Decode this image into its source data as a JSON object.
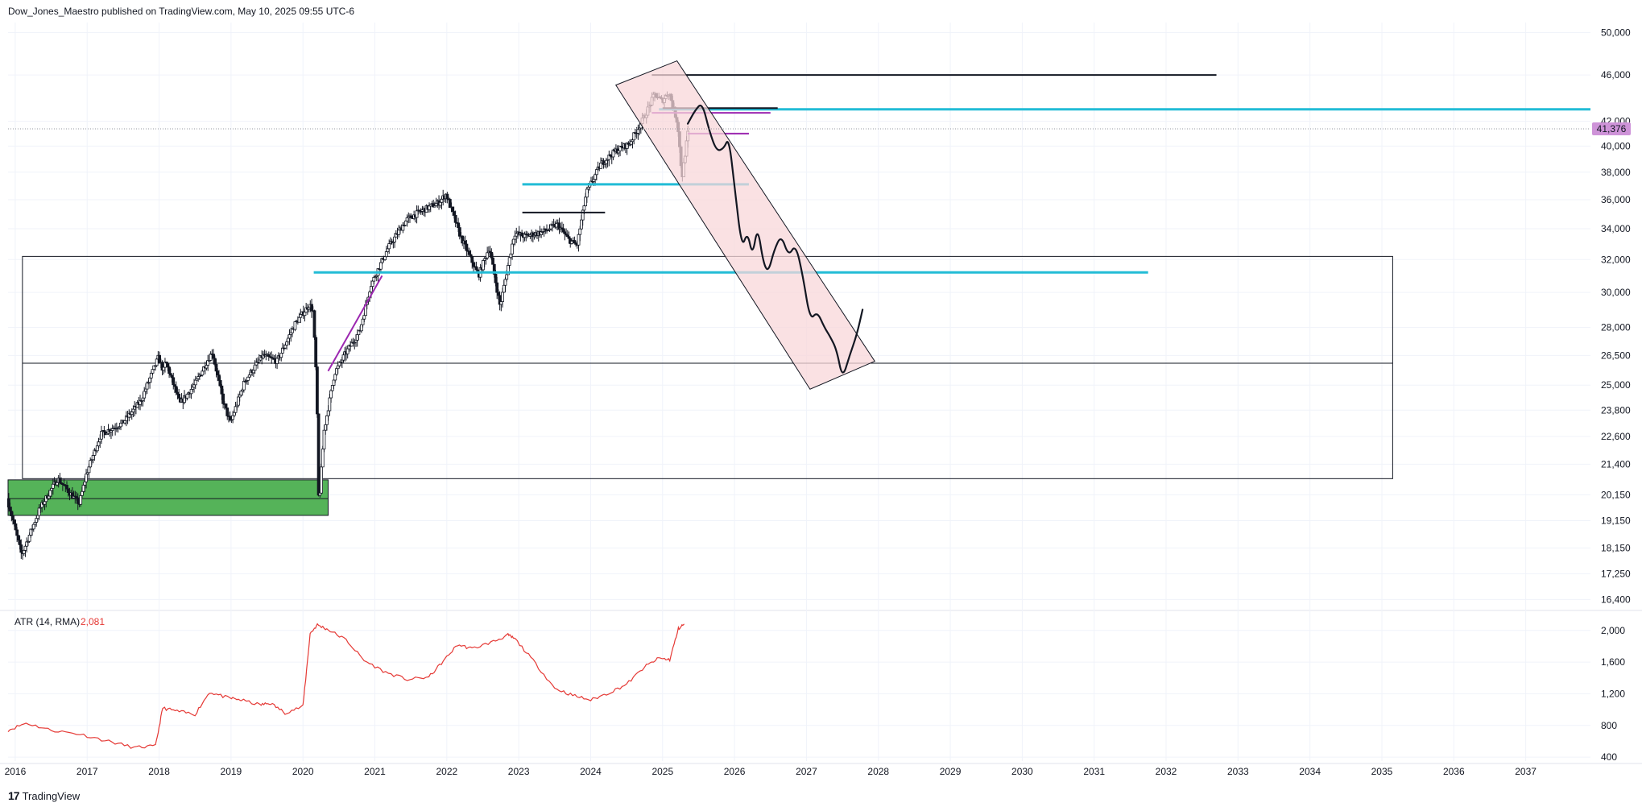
{
  "header": {
    "attribution": "Dow_Jones_Maestro published on TradingView.com, May 10, 2025 09:55 UTC-6"
  },
  "branding": {
    "mark": "17",
    "name": "TradingView"
  },
  "colors": {
    "grid": "#f0f3fa",
    "candle": "#131722",
    "cyan": "#22bcd6",
    "purple": "#9c27b0",
    "green": "#4caf50",
    "channel_fill": "#f8d7da",
    "atr_line": "#e53935",
    "price_tag": "#ce93d8"
  },
  "chart_data": [
    {
      "type": "candlestick",
      "title": "",
      "scale": "log",
      "ylim": [
        16000,
        51000
      ],
      "xlim": [
        2015.9,
        2037.9
      ],
      "y_ticks": [
        "50,000",
        "46,000",
        "42,000",
        "40,000",
        "38,000",
        "36,000",
        "34,000",
        "32,000",
        "30,000",
        "28,000",
        "26,500",
        "25,000",
        "23,800",
        "22,600",
        "21,400",
        "20,150",
        "19,150",
        "18,150",
        "17,250",
        "16,400"
      ],
      "y_tick_values": [
        50000,
        46000,
        42000,
        40000,
        38000,
        36000,
        34000,
        32000,
        30000,
        28000,
        26500,
        25000,
        23800,
        22600,
        21400,
        20150,
        19150,
        18150,
        17250,
        16400
      ],
      "x_ticks": [
        "2016",
        "2017",
        "2018",
        "2019",
        "2020",
        "2021",
        "2022",
        "2023",
        "2024",
        "2025",
        "2026",
        "2027",
        "2028",
        "2029",
        "2030",
        "2031",
        "2032",
        "2033",
        "2034",
        "2035",
        "2036",
        "2037"
      ],
      "last_price": "41,376",
      "last_price_value": 41376,
      "price_path": [
        [
          2015.9,
          20000
        ],
        [
          2016.1,
          17900
        ],
        [
          2016.35,
          19600
        ],
        [
          2016.6,
          20800
        ],
        [
          2016.9,
          19800
        ],
        [
          2017.0,
          21000
        ],
        [
          2017.2,
          22700
        ],
        [
          2017.5,
          23200
        ],
        [
          2017.75,
          24200
        ],
        [
          2018.0,
          26400
        ],
        [
          2018.07,
          25700
        ],
        [
          2018.1,
          26200
        ],
        [
          2018.3,
          24100
        ],
        [
          2018.5,
          25000
        ],
        [
          2018.75,
          26700
        ],
        [
          2018.9,
          24200
        ],
        [
          2019.0,
          23200
        ],
        [
          2019.2,
          25200
        ],
        [
          2019.45,
          26500
        ],
        [
          2019.65,
          26200
        ],
        [
          2019.9,
          28200
        ],
        [
          2020.1,
          29300
        ],
        [
          2020.15,
          28900
        ],
        [
          2020.2,
          25000
        ],
        [
          2020.23,
          19600
        ],
        [
          2020.3,
          22800
        ],
        [
          2020.45,
          25600
        ],
        [
          2020.6,
          26600
        ],
        [
          2020.8,
          27800
        ],
        [
          2020.95,
          30400
        ],
        [
          2021.2,
          32800
        ],
        [
          2021.45,
          34600
        ],
        [
          2021.65,
          35200
        ],
        [
          2021.9,
          35800
        ],
        [
          2022.0,
          36400
        ],
        [
          2022.2,
          33500
        ],
        [
          2022.45,
          31000
        ],
        [
          2022.6,
          32800
        ],
        [
          2022.75,
          29200
        ],
        [
          2022.95,
          33700
        ],
        [
          2023.1,
          33500
        ],
        [
          2023.35,
          33800
        ],
        [
          2023.55,
          34300
        ],
        [
          2023.7,
          33300
        ],
        [
          2023.82,
          32900
        ],
        [
          2023.95,
          36500
        ],
        [
          2024.15,
          38600
        ],
        [
          2024.35,
          39600
        ],
        [
          2024.55,
          40200
        ],
        [
          2024.75,
          42300
        ],
        [
          2024.9,
          44300
        ],
        [
          2025.0,
          43700
        ],
        [
          2025.1,
          44500
        ],
        [
          2025.22,
          41800
        ],
        [
          2025.28,
          37600
        ],
        [
          2025.36,
          41000
        ]
      ],
      "horizontal_levels": [
        {
          "color": "black",
          "price": 46000,
          "x": [
            2024.85,
            2032.7
          ]
        },
        {
          "color": "cyan",
          "price": 43000,
          "x": [
            2024.95,
            2037.9
          ]
        },
        {
          "color": "black",
          "price": 43100,
          "x": [
            2025.0,
            2026.6
          ]
        },
        {
          "color": "purple",
          "price": 42700,
          "x": [
            2024.85,
            2026.5
          ]
        },
        {
          "color": "purple",
          "price": 41000,
          "x": [
            2025.35,
            2026.2
          ]
        },
        {
          "color": "cyan",
          "price": 37100,
          "x": [
            2023.05,
            2026.2
          ]
        },
        {
          "color": "black",
          "price": 35100,
          "x": [
            2023.05,
            2024.2
          ]
        },
        {
          "color": "cyan",
          "price": 31200,
          "x": [
            2020.15,
            2031.75
          ]
        }
      ],
      "zones": [
        {
          "kind": "box",
          "x": [
            2016.1,
            2035.15
          ],
          "price": [
            20800,
            32200
          ]
        },
        {
          "kind": "line",
          "x": [
            2016.1,
            2035.15
          ],
          "price": 26100
        },
        {
          "kind": "green-zone",
          "x": [
            2015.9,
            2020.35
          ],
          "price": [
            19350,
            20750
          ]
        },
        {
          "kind": "green-midline",
          "x": [
            2015.9,
            2020.35
          ],
          "price": 20000
        }
      ],
      "purple_trendline": [
        [
          2020.35,
          25700
        ],
        [
          2021.1,
          31000
        ]
      ],
      "channel": [
        [
          2024.35,
          45100
        ],
        [
          2025.2,
          47300
        ],
        [
          2027.95,
          26200
        ],
        [
          2027.05,
          24800
        ]
      ],
      "projection_path": [
        [
          2025.35,
          41800
        ],
        [
          2025.45,
          42900
        ],
        [
          2025.55,
          43600
        ],
        [
          2025.65,
          41200
        ],
        [
          2025.75,
          39600
        ],
        [
          2025.85,
          39800
        ],
        [
          2025.92,
          40700
        ],
        [
          2026.0,
          37000
        ],
        [
          2026.1,
          32700
        ],
        [
          2026.18,
          33800
        ],
        [
          2026.25,
          32200
        ],
        [
          2026.32,
          34200
        ],
        [
          2026.4,
          31800
        ],
        [
          2026.47,
          31200
        ],
        [
          2026.55,
          32600
        ],
        [
          2026.65,
          33600
        ],
        [
          2026.75,
          32200
        ],
        [
          2026.85,
          33000
        ],
        [
          2026.95,
          31000
        ],
        [
          2027.05,
          28400
        ],
        [
          2027.15,
          28900
        ],
        [
          2027.25,
          28000
        ],
        [
          2027.33,
          27500
        ],
        [
          2027.42,
          26800
        ],
        [
          2027.5,
          25300
        ],
        [
          2027.6,
          26500
        ],
        [
          2027.7,
          27600
        ],
        [
          2027.78,
          29000
        ]
      ]
    },
    {
      "type": "line",
      "title": "",
      "indicator_label": "ATR (14, RMA)",
      "indicator_value": "2,081",
      "ylim": [
        350,
        2150
      ],
      "y_ticks": [
        "2,000",
        "1,600",
        "1,200",
        "800",
        "400"
      ],
      "y_tick_values": [
        2000,
        1600,
        1200,
        800,
        400
      ],
      "series": [
        {
          "x": [
            2015.9,
            2016.15,
            2016.5,
            2016.9,
            2017.3,
            2017.65,
            2017.95,
            2018.05,
            2018.25,
            2018.5,
            2018.7,
            2018.95,
            2019.1,
            2019.4,
            2019.55,
            2019.75,
            2020.0,
            2020.1,
            2020.2,
            2020.35,
            2020.6,
            2020.85,
            2021.15,
            2021.45,
            2021.75,
            2021.95,
            2022.15,
            2022.35,
            2022.65,
            2022.85,
            2022.95,
            2023.2,
            2023.5,
            2023.75,
            2024.0,
            2024.25,
            2024.5,
            2024.75,
            2024.95,
            2025.1,
            2025.22,
            2025.3
          ],
          "y": [
            740,
            830,
            740,
            690,
            600,
            520,
            540,
            1020,
            980,
            940,
            1220,
            1150,
            1130,
            1060,
            1080,
            960,
            1040,
            1960,
            2070,
            2010,
            1880,
            1620,
            1470,
            1380,
            1410,
            1610,
            1820,
            1770,
            1860,
            1940,
            1890,
            1620,
            1270,
            1180,
            1120,
            1210,
            1320,
            1540,
            1650,
            1630,
            2020,
            2081
          ]
        }
      ]
    }
  ]
}
